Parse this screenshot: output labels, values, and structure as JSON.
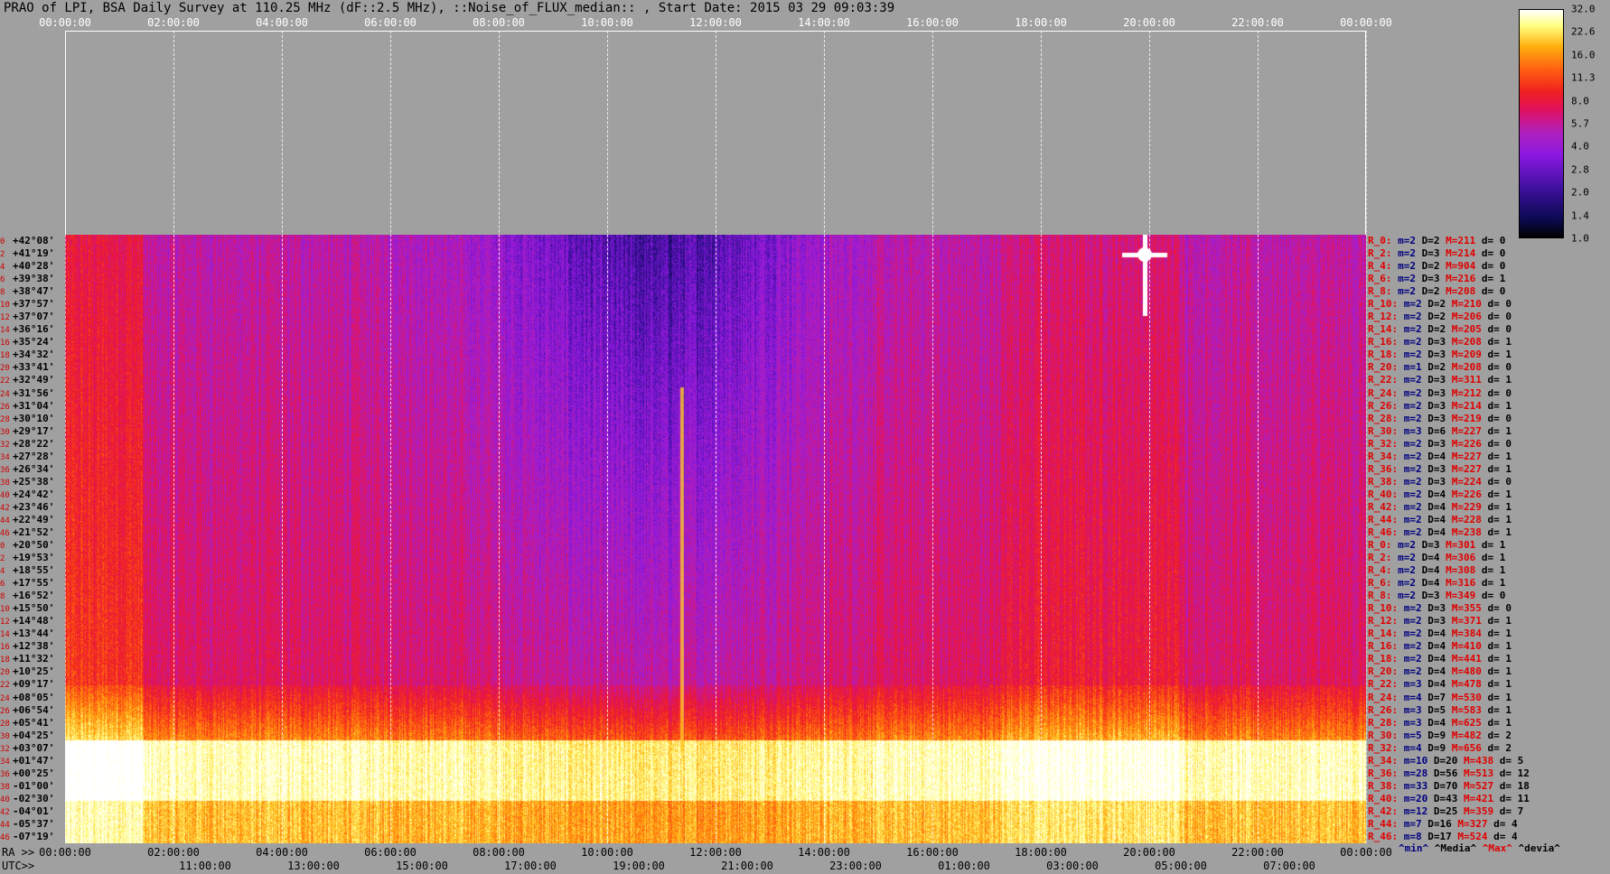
{
  "title": "PRAO of LPI, BSA Daily Survey at 110.25 MHz (dF::2.5 MHz), ::Noise_of_FLUX_median:: , Start Date: 2015 03 29 09:03:39",
  "chart_data": {
    "type": "heatmap",
    "title": "PRAO of LPI, BSA Daily Survey at 110.25 MHz (dF::2.5 MHz), ::Noise_of_FLUX_median:: , Start Date: 2015 03 29 09:03:39",
    "ra_label": "RA >>",
    "utc_label": "UTC>>",
    "ra_ticks": [
      "00:00:00",
      "02:00:00",
      "04:00:00",
      "06:00:00",
      "08:00:00",
      "10:00:00",
      "12:00:00",
      "14:00:00",
      "16:00:00",
      "18:00:00",
      "20:00:00",
      "22:00:00",
      "00:00:00"
    ],
    "utc_ticks": [
      "11:00:00",
      "13:00:00",
      "15:00:00",
      "17:00:00",
      "19:00:00",
      "21:00:00",
      "23:00:00",
      "01:00:00",
      "03:00:00",
      "05:00:00",
      "07:00:00"
    ],
    "colorbar_ticks": [
      "32.0",
      "22.6",
      "16.0",
      "11.3",
      "8.0",
      "5.7",
      "4.0",
      "2.8",
      "2.0",
      "1.4",
      "1.0"
    ],
    "colorbar_scale": "log",
    "colors": [
      "#000000",
      "#0a0a50",
      "#4010a0",
      "#8a18e0",
      "#b020c0",
      "#e01060",
      "#f02020",
      "#ff6010",
      "#ffb010",
      "#ffff80",
      "#ffffff"
    ],
    "rows": [
      {
        "idx": "0",
        "dec": "+42°08'",
        "r": "R_0:",
        "m": "m=2",
        "D": "D=2",
        "M": "M=211",
        "d": "d= 0"
      },
      {
        "idx": "2",
        "dec": "+41°19'",
        "r": "R_2:",
        "m": "m=2",
        "D": "D=3",
        "M": "M=214",
        "d": "d= 0"
      },
      {
        "idx": "4",
        "dec": "+40°28'",
        "r": "R_4:",
        "m": "m=2",
        "D": "D=2",
        "M": "M=904",
        "d": "d= 0"
      },
      {
        "idx": "6",
        "dec": "+39°38'",
        "r": "R_6:",
        "m": "m=2",
        "D": "D=3",
        "M": "M=216",
        "d": "d= 1"
      },
      {
        "idx": "8",
        "dec": "+38°47'",
        "r": "R_8:",
        "m": "m=2",
        "D": "D=2",
        "M": "M=208",
        "d": "d= 0"
      },
      {
        "idx": "10",
        "dec": "+37°57'",
        "r": "R_10:",
        "m": "m=2",
        "D": "D=2",
        "M": "M=210",
        "d": "d= 0"
      },
      {
        "idx": "12",
        "dec": "+37°07'",
        "r": "R_12:",
        "m": "m=2",
        "D": "D=2",
        "M": "M=206",
        "d": "d= 0"
      },
      {
        "idx": "14",
        "dec": "+36°16'",
        "r": "R_14:",
        "m": "m=2",
        "D": "D=2",
        "M": "M=205",
        "d": "d= 0"
      },
      {
        "idx": "16",
        "dec": "+35°24'",
        "r": "R_16:",
        "m": "m=2",
        "D": "D=3",
        "M": "M=208",
        "d": "d= 1"
      },
      {
        "idx": "18",
        "dec": "+34°32'",
        "r": "R_18:",
        "m": "m=2",
        "D": "D=3",
        "M": "M=209",
        "d": "d= 1"
      },
      {
        "idx": "20",
        "dec": "+33°41'",
        "r": "R_20:",
        "m": "m=1",
        "D": "D=2",
        "M": "M=208",
        "d": "d= 0"
      },
      {
        "idx": "22",
        "dec": "+32°49'",
        "r": "R_22:",
        "m": "m=2",
        "D": "D=3",
        "M": "M=311",
        "d": "d= 1"
      },
      {
        "idx": "24",
        "dec": "+31°56'",
        "r": "R_24:",
        "m": "m=2",
        "D": "D=3",
        "M": "M=212",
        "d": "d= 0"
      },
      {
        "idx": "26",
        "dec": "+31°04'",
        "r": "R_26:",
        "m": "m=2",
        "D": "D=3",
        "M": "M=214",
        "d": "d= 1"
      },
      {
        "idx": "28",
        "dec": "+30°10'",
        "r": "R_28:",
        "m": "m=2",
        "D": "D=3",
        "M": "M=219",
        "d": "d= 0"
      },
      {
        "idx": "30",
        "dec": "+29°17'",
        "r": "R_30:",
        "m": "m=3",
        "D": "D=6",
        "M": "M=227",
        "d": "d= 1"
      },
      {
        "idx": "32",
        "dec": "+28°22'",
        "r": "R_32:",
        "m": "m=2",
        "D": "D=3",
        "M": "M=226",
        "d": "d= 0"
      },
      {
        "idx": "34",
        "dec": "+27°28'",
        "r": "R_34:",
        "m": "m=2",
        "D": "D=4",
        "M": "M=227",
        "d": "d= 1"
      },
      {
        "idx": "36",
        "dec": "+26°34'",
        "r": "R_36:",
        "m": "m=2",
        "D": "D=3",
        "M": "M=227",
        "d": "d= 1"
      },
      {
        "idx": "38",
        "dec": "+25°38'",
        "r": "R_38:",
        "m": "m=2",
        "D": "D=3",
        "M": "M=224",
        "d": "d= 0"
      },
      {
        "idx": "40",
        "dec": "+24°42'",
        "r": "R_40:",
        "m": "m=2",
        "D": "D=4",
        "M": "M=226",
        "d": "d= 1"
      },
      {
        "idx": "42",
        "dec": "+23°46'",
        "r": "R_42:",
        "m": "m=2",
        "D": "D=4",
        "M": "M=229",
        "d": "d= 1"
      },
      {
        "idx": "44",
        "dec": "+22°49'",
        "r": "R_44:",
        "m": "m=2",
        "D": "D=4",
        "M": "M=228",
        "d": "d= 1"
      },
      {
        "idx": "46",
        "dec": "+21°52'",
        "r": "R_46:",
        "m": "m=2",
        "D": "D=4",
        "M": "M=238",
        "d": "d= 1"
      },
      {
        "idx": "0",
        "dec": "+20°50'",
        "r": "R_0:",
        "m": "m=2",
        "D": "D=3",
        "M": "M=301",
        "d": "d= 1"
      },
      {
        "idx": "2",
        "dec": "+19°53'",
        "r": "R_2:",
        "m": "m=2",
        "D": "D=4",
        "M": "M=306",
        "d": "d= 1"
      },
      {
        "idx": "4",
        "dec": "+18°55'",
        "r": "R_4:",
        "m": "m=2",
        "D": "D=4",
        "M": "M=308",
        "d": "d= 1"
      },
      {
        "idx": "6",
        "dec": "+17°55'",
        "r": "R_6:",
        "m": "m=2",
        "D": "D=4",
        "M": "M=316",
        "d": "d= 1"
      },
      {
        "idx": "8",
        "dec": "+16°52'",
        "r": "R_8:",
        "m": "m=2",
        "D": "D=3",
        "M": "M=349",
        "d": "d= 0"
      },
      {
        "idx": "10",
        "dec": "+15°50'",
        "r": "R_10:",
        "m": "m=2",
        "D": "D=3",
        "M": "M=355",
        "d": "d= 0"
      },
      {
        "idx": "12",
        "dec": "+14°48'",
        "r": "R_12:",
        "m": "m=2",
        "D": "D=3",
        "M": "M=371",
        "d": "d= 1"
      },
      {
        "idx": "14",
        "dec": "+13°44'",
        "r": "R_14:",
        "m": "m=2",
        "D": "D=4",
        "M": "M=384",
        "d": "d= 1"
      },
      {
        "idx": "16",
        "dec": "+12°38'",
        "r": "R_16:",
        "m": "m=2",
        "D": "D=4",
        "M": "M=410",
        "d": "d= 1"
      },
      {
        "idx": "18",
        "dec": "+11°32'",
        "r": "R_18:",
        "m": "m=2",
        "D": "D=4",
        "M": "M=441",
        "d": "d= 1"
      },
      {
        "idx": "20",
        "dec": "+10°25'",
        "r": "R_20:",
        "m": "m=2",
        "D": "D=4",
        "M": "M=480",
        "d": "d= 1"
      },
      {
        "idx": "22",
        "dec": "+09°17'",
        "r": "R_22:",
        "m": "m=3",
        "D": "D=4",
        "M": "M=478",
        "d": "d= 1"
      },
      {
        "idx": "24",
        "dec": "+08°05'",
        "r": "R_24:",
        "m": "m=4",
        "D": "D=7",
        "M": "M=530",
        "d": "d= 1"
      },
      {
        "idx": "26",
        "dec": "+06°54'",
        "r": "R_26:",
        "m": "m=3",
        "D": "D=5",
        "M": "M=583",
        "d": "d= 1"
      },
      {
        "idx": "28",
        "dec": "+05°41'",
        "r": "R_28:",
        "m": "m=3",
        "D": "D=4",
        "M": "M=625",
        "d": "d= 1"
      },
      {
        "idx": "30",
        "dec": "+04°25'",
        "r": "R_30:",
        "m": "m=5",
        "D": "D=9",
        "M": "M=482",
        "d": "d= 2"
      },
      {
        "idx": "32",
        "dec": "+03°07'",
        "r": "R_32:",
        "m": "m=4",
        "D": "D=9",
        "M": "M=656",
        "d": "d= 2"
      },
      {
        "idx": "34",
        "dec": "+01°47'",
        "r": "R_34:",
        "m": "m=10",
        "D": "D=20",
        "M": "M=438",
        "d": "d= 5"
      },
      {
        "idx": "36",
        "dec": "+00°25'",
        "r": "R_36:",
        "m": "m=28",
        "D": "D=56",
        "M": "M=513",
        "d": "d= 12"
      },
      {
        "idx": "38",
        "dec": "-01°00'",
        "r": "R_38:",
        "m": "m=33",
        "D": "D=70",
        "M": "M=527",
        "d": "d= 18"
      },
      {
        "idx": "40",
        "dec": "-02°30'",
        "r": "R_40:",
        "m": "m=20",
        "D": "D=43",
        "M": "M=421",
        "d": "d= 11"
      },
      {
        "idx": "42",
        "dec": "-04°01'",
        "r": "R_42:",
        "m": "m=12",
        "D": "D=25",
        "M": "M=359",
        "d": "d= 7"
      },
      {
        "idx": "44",
        "dec": "-05°37'",
        "r": "R_44:",
        "m": "m=7",
        "D": "D=16",
        "M": "M=327",
        "d": "d= 4"
      },
      {
        "idx": "46",
        "dec": "-07°19'",
        "r": "R_46:",
        "m": "m=8",
        "D": "D=17",
        "M": "M=524",
        "d": "d= 4"
      }
    ],
    "legend": {
      "min": "^min^",
      "media": "^Media^",
      "max": "^Max^",
      "devia": "^devia^"
    }
  }
}
